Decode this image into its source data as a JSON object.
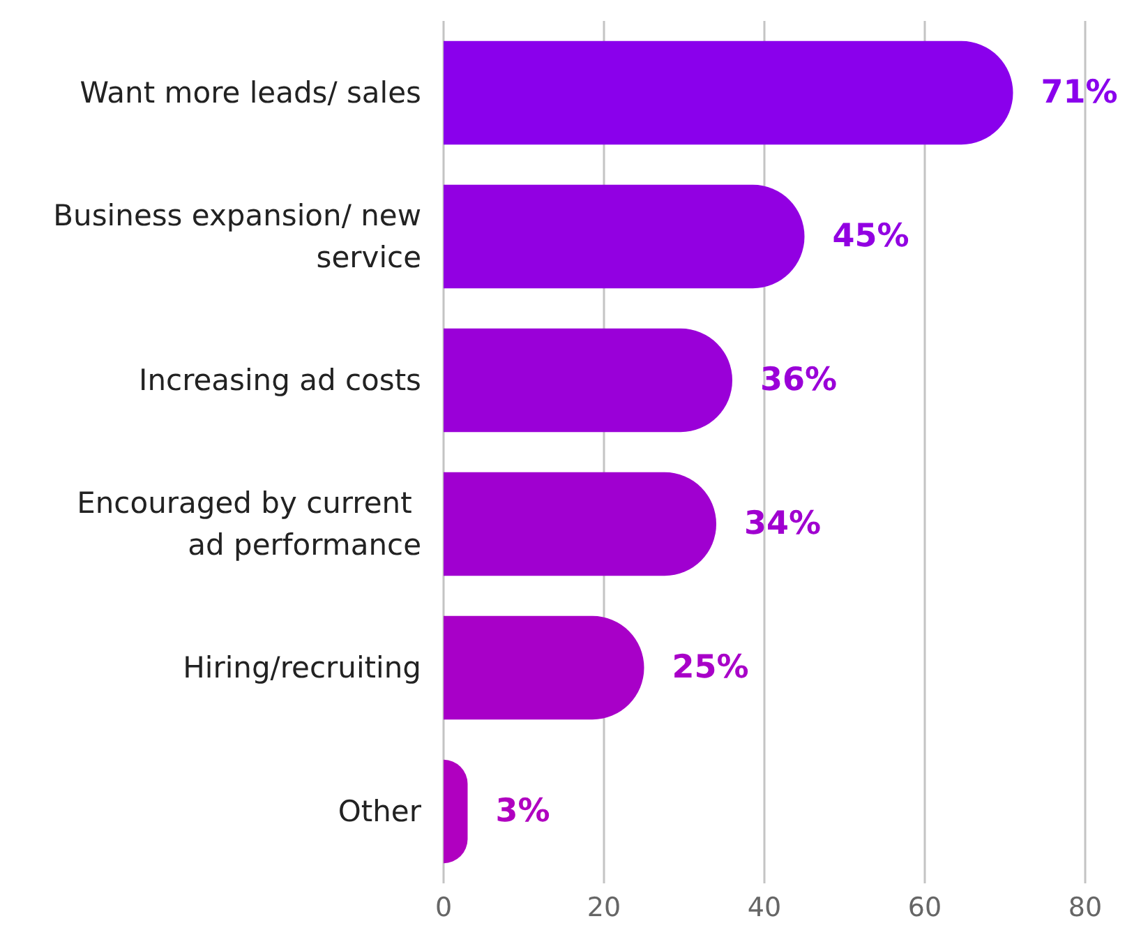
{
  "chart_data": {
    "type": "bar",
    "orientation": "horizontal",
    "categories": [
      "Want more leads/ sales",
      "Business expansion/ new service",
      "Increasing ad costs",
      "Encouraged by current ad performance",
      "Hiring/recruiting",
      "Other"
    ],
    "values": [
      71,
      45,
      36,
      34,
      25,
      3
    ],
    "colors": [
      "#8a00ec",
      "#9200e2",
      "#9a00d8",
      "#a000d0",
      "#a800c8",
      "#b000c0"
    ],
    "value_labels": [
      "71%",
      "45%",
      "36%",
      "34%",
      "25%",
      "3%"
    ],
    "xlim": [
      0,
      80
    ],
    "xticks": [
      0,
      20,
      40,
      60,
      80
    ],
    "grid": "x"
  }
}
